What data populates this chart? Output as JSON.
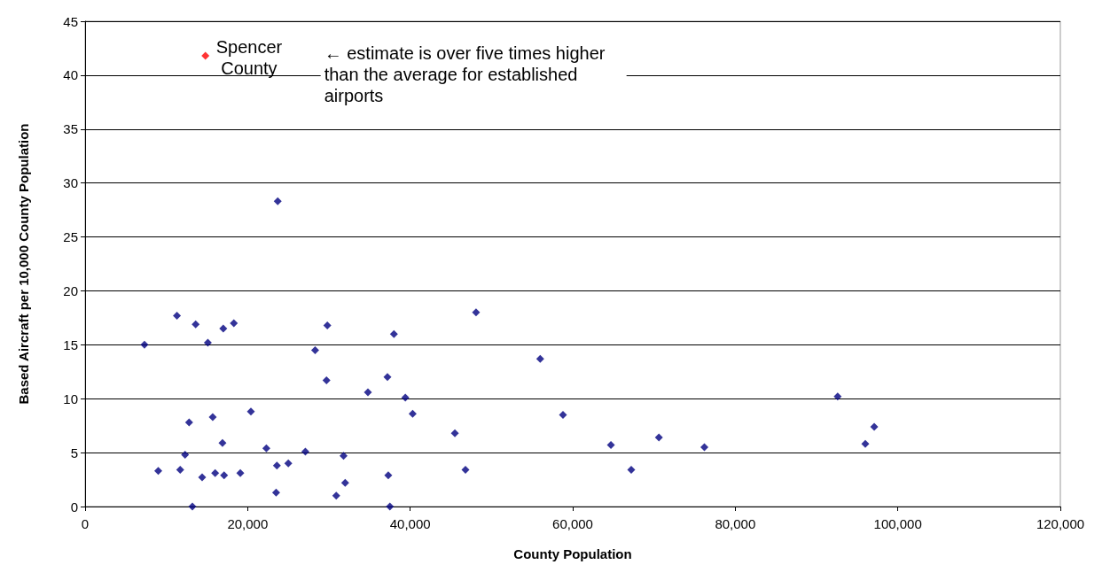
{
  "chart_data": {
    "type": "scatter",
    "xlabel": "County Population",
    "ylabel": "Based Aircraft per 10,000 County Population",
    "xlim": [
      0,
      120000
    ],
    "xticks": [
      {
        "value": 0,
        "label": "0"
      },
      {
        "value": 20000,
        "label": "20,000"
      },
      {
        "value": 40000,
        "label": "40,000"
      },
      {
        "value": 60000,
        "label": "60,000"
      },
      {
        "value": 80000,
        "label": "80,000"
      },
      {
        "value": 100000,
        "label": "100,000"
      },
      {
        "value": 120000,
        "label": "120,000"
      }
    ],
    "ylim": [
      0,
      45
    ],
    "yticks": [
      0,
      5,
      10,
      15,
      20,
      25,
      30,
      35,
      40,
      45
    ],
    "grid": "y",
    "marker": "diamond",
    "series": [
      {
        "color": "#000080",
        "x": [
          7300,
          9000,
          11300,
          11700,
          12300,
          12800,
          13200,
          13600,
          14400,
          15100,
          15700,
          16000,
          16900,
          17000,
          17100,
          18300,
          19100,
          20400,
          22300,
          23500,
          23600,
          23700,
          25000,
          27100,
          28300,
          29700,
          29800,
          30900,
          31800,
          32000,
          34800,
          37200,
          37300,
          37500,
          38000,
          39400,
          40300,
          45500,
          46800,
          48100,
          56000,
          58800,
          64700,
          67200,
          70600,
          76200,
          92600,
          96000,
          97100
        ],
        "values": [
          15,
          3.3,
          17.7,
          3.4,
          4.8,
          7.8,
          0,
          16.9,
          2.7,
          15.2,
          8.3,
          3.1,
          5.9,
          16.5,
          2.9,
          17,
          3.1,
          8.8,
          5.4,
          1.3,
          3.8,
          28.3,
          4,
          5.1,
          14.5,
          11.7,
          16.8,
          1,
          4.7,
          2.2,
          10.6,
          12,
          2.9,
          0,
          16,
          10.1,
          8.6,
          6.8,
          3.4,
          18,
          13.7,
          8.5,
          5.7,
          3.4,
          6.4,
          5.5,
          10.2,
          5.8,
          7.4
        ]
      },
      {
        "color": "#ff0000",
        "x": [
          14800
        ],
        "values": [
          41.8
        ]
      }
    ],
    "annotations": [
      {
        "text": "Spencer County",
        "x": 14800,
        "y": 41.8
      },
      "← estimate is over five times higher than the average for established airports"
    ]
  }
}
